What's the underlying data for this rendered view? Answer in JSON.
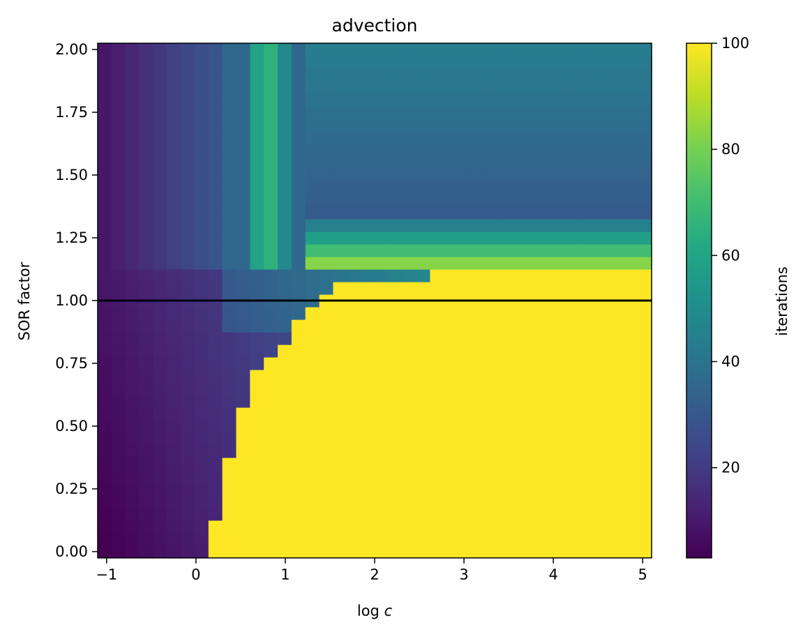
{
  "chart_data": {
    "type": "heatmap",
    "title": "advection",
    "xlabel_prefix": "log ",
    "xlabel_var": "c",
    "ylabel": "SOR factor",
    "colorbar_label": "iterations",
    "colormap": "viridis",
    "xlim": [
      -1.1,
      5.1
    ],
    "ylim": [
      -0.025,
      2.025
    ],
    "clim": [
      3,
      100
    ],
    "x_ticks": [
      -1,
      0,
      1,
      2,
      3,
      4,
      5
    ],
    "x_tick_labels": [
      "−1",
      "0",
      "1",
      "2",
      "3",
      "4",
      "5"
    ],
    "y_ticks": [
      0.0,
      0.25,
      0.5,
      0.75,
      1.0,
      1.25,
      1.5,
      1.75,
      2.0
    ],
    "y_tick_labels": [
      "0.00",
      "0.25",
      "0.50",
      "0.75",
      "1.00",
      "1.25",
      "1.50",
      "1.75",
      "2.00"
    ],
    "colorbar_ticks": [
      20,
      40,
      60,
      80,
      100
    ],
    "colorbar_tick_labels": [
      "20",
      "40",
      "60",
      "80",
      "100"
    ],
    "grid": false,
    "nx": 40,
    "ny": 41,
    "x_range": [
      -1.1,
      5.1
    ],
    "y_range": [
      -0.025,
      2.025
    ],
    "reference_line": {
      "y": 1.0,
      "color": "#000000"
    },
    "boundary_samples": [
      {
        "log_c": 0.15,
        "sor_factor": 0.0
      },
      {
        "log_c": 0.3,
        "sor_factor": 0.3
      },
      {
        "log_c": 0.45,
        "sor_factor": 0.5
      },
      {
        "log_c": 0.6,
        "sor_factor": 0.65
      },
      {
        "log_c": 0.75,
        "sor_factor": 0.75
      },
      {
        "log_c": 0.9,
        "sor_factor": 0.8
      },
      {
        "log_c": 1.1,
        "sor_factor": 0.9
      },
      {
        "log_c": 1.3,
        "sor_factor": 0.97
      },
      {
        "log_c": 1.5,
        "sor_factor": 1.05
      },
      {
        "log_c": 3.0,
        "sor_factor": 1.12
      },
      {
        "log_c": 5.0,
        "sor_factor": 1.15
      }
    ]
  }
}
